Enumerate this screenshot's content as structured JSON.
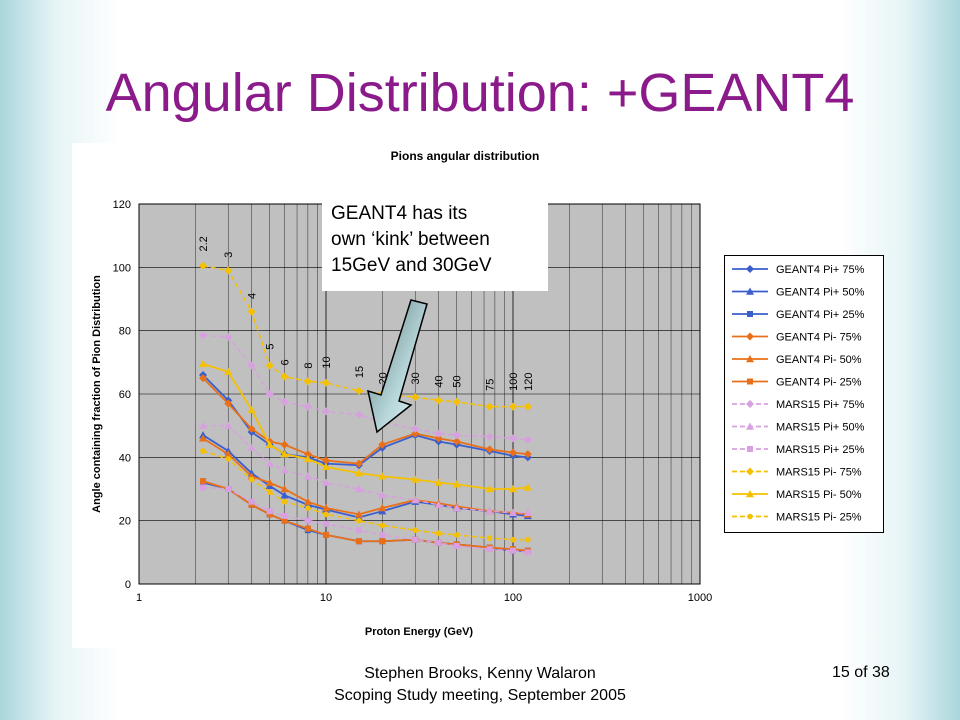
{
  "slide": {
    "title": "Angular Distribution: +GEANT4",
    "callout": [
      "GEANT4 has its",
      "own ‘kink’ between",
      "15GeV and 30GeV"
    ],
    "footer": [
      "Stephen Brooks, Kenny Walaron",
      "Scoping Study meeting, September 2005"
    ],
    "page": "15 of 38"
  },
  "chart_data": {
    "type": "line",
    "title": "Pions angular distribution",
    "xlabel": "Proton Energy (GeV)",
    "ylabel": "Angle containing fraction of Pion Distribution",
    "xscale": "log",
    "xlim": [
      1,
      1000
    ],
    "ylim": [
      0,
      120
    ],
    "xticks": [
      1,
      10,
      100,
      1000
    ],
    "xtick_labels": [
      "1",
      "10",
      "100",
      "1000"
    ],
    "yticks": [
      0,
      20,
      40,
      60,
      80,
      100,
      120
    ],
    "ytick_labels": [
      "0",
      "20",
      "40",
      "60",
      "80",
      "100",
      "120"
    ],
    "grid": true,
    "legend_position": "right",
    "energy_labels": [
      {
        "x": 2.2,
        "y": 105,
        "label": "2.2"
      },
      {
        "x": 3,
        "y": 103,
        "label": "3"
      },
      {
        "x": 4,
        "y": 90,
        "label": "4"
      },
      {
        "x": 5,
        "y": 74,
        "label": "5"
      },
      {
        "x": 6,
        "y": 69,
        "label": "6"
      },
      {
        "x": 8,
        "y": 68,
        "label": "8"
      },
      {
        "x": 10,
        "y": 68,
        "label": "10"
      },
      {
        "x": 15,
        "y": 65,
        "label": "15"
      },
      {
        "x": 20,
        "y": 63,
        "label": "20"
      },
      {
        "x": 30,
        "y": 63,
        "label": "30"
      },
      {
        "x": 40,
        "y": 62,
        "label": "40"
      },
      {
        "x": 50,
        "y": 62,
        "label": "50"
      },
      {
        "x": 75,
        "y": 61,
        "label": "75"
      },
      {
        "x": 100,
        "y": 61,
        "label": "100"
      },
      {
        "x": 120,
        "y": 61,
        "label": "120"
      }
    ],
    "x": [
      2.2,
      3,
      4,
      5,
      6,
      8,
      10,
      15,
      20,
      30,
      40,
      50,
      75,
      100,
      120
    ],
    "series": [
      {
        "name": "GEANT4 Pi+ 75%",
        "color": "#3a5fcd",
        "marker": "diamond",
        "dash": false,
        "values": [
          66,
          58,
          48,
          44,
          41,
          40,
          38,
          37.5,
          43,
          47,
          45,
          44,
          42,
          40.5,
          40
        ]
      },
      {
        "name": "GEANT4 Pi+ 50%",
        "color": "#3a5fcd",
        "marker": "triangle",
        "dash": false,
        "values": [
          47,
          42,
          35,
          31,
          28,
          25,
          23.5,
          21,
          23,
          26,
          25,
          24,
          23,
          22,
          21.5
        ]
      },
      {
        "name": "GEANT4 Pi+ 25%",
        "color": "#3a5fcd",
        "marker": "square",
        "dash": false,
        "values": [
          32,
          30,
          25,
          22,
          20,
          17,
          15.5,
          13.5,
          13.5,
          14,
          13,
          12.5,
          11.5,
          10.5,
          10.5
        ]
      },
      {
        "name": "GEANT4 Pi- 75%",
        "color": "#e8701a",
        "marker": "diamond",
        "dash": false,
        "values": [
          65,
          57,
          49,
          45,
          44,
          41,
          39,
          38,
          44,
          47.5,
          46,
          45,
          42.5,
          41.5,
          41
        ]
      },
      {
        "name": "GEANT4 Pi- 50%",
        "color": "#e8701a",
        "marker": "triangle",
        "dash": false,
        "values": [
          46,
          41,
          34,
          32,
          30,
          26,
          24,
          22,
          24,
          26.5,
          25.5,
          24.5,
          23,
          22.5,
          22
        ]
      },
      {
        "name": "GEANT4 Pi- 25%",
        "color": "#e8701a",
        "marker": "square",
        "dash": false,
        "values": [
          32.5,
          30,
          25,
          22,
          20,
          17.5,
          15.5,
          13.5,
          13.5,
          14,
          13,
          12.5,
          11.5,
          11,
          10.5
        ]
      },
      {
        "name": "MARS15 Pi+ 75%",
        "color": "#d8a0e0",
        "marker": "diamond",
        "dash": true,
        "values": [
          78.5,
          78,
          69,
          60,
          57.5,
          56,
          54.5,
          53.5,
          51,
          49,
          47.5,
          47,
          46.5,
          46,
          45.5
        ]
      },
      {
        "name": "MARS15 Pi+ 50%",
        "color": "#d8a0e0",
        "marker": "triangle",
        "dash": true,
        "values": [
          50,
          50,
          43,
          38,
          36,
          34,
          32,
          30,
          28,
          26.5,
          25,
          24,
          23,
          22.5,
          22.5
        ]
      },
      {
        "name": "MARS15 Pi+ 25%",
        "color": "#d8a0e0",
        "marker": "square",
        "dash": true,
        "values": [
          30.5,
          30,
          26,
          23,
          21.5,
          20,
          19,
          17,
          15.5,
          14,
          13,
          12,
          11,
          10.5,
          10
        ]
      },
      {
        "name": "MARS15 Pi- 75%",
        "color": "#f5c000",
        "marker": "diamond",
        "dash": true,
        "values": [
          100.5,
          99,
          86,
          69,
          65.5,
          64,
          63.5,
          61,
          60,
          59,
          58,
          57.5,
          56,
          56,
          56
        ]
      },
      {
        "name": "MARS15 Pi- 50%",
        "color": "#f5c000",
        "marker": "triangle",
        "dash": false,
        "values": [
          69.5,
          67,
          55,
          44,
          41,
          39.5,
          37,
          35,
          34,
          33,
          32,
          31.5,
          30,
          30,
          30.5
        ]
      },
      {
        "name": "MARS15 Pi- 25%",
        "color": "#f5c000",
        "marker": "circle",
        "dash": true,
        "values": [
          42,
          39.5,
          33,
          29,
          26,
          24,
          22,
          20,
          18.5,
          17,
          16,
          15.5,
          14.5,
          14,
          14
        ]
      }
    ]
  }
}
